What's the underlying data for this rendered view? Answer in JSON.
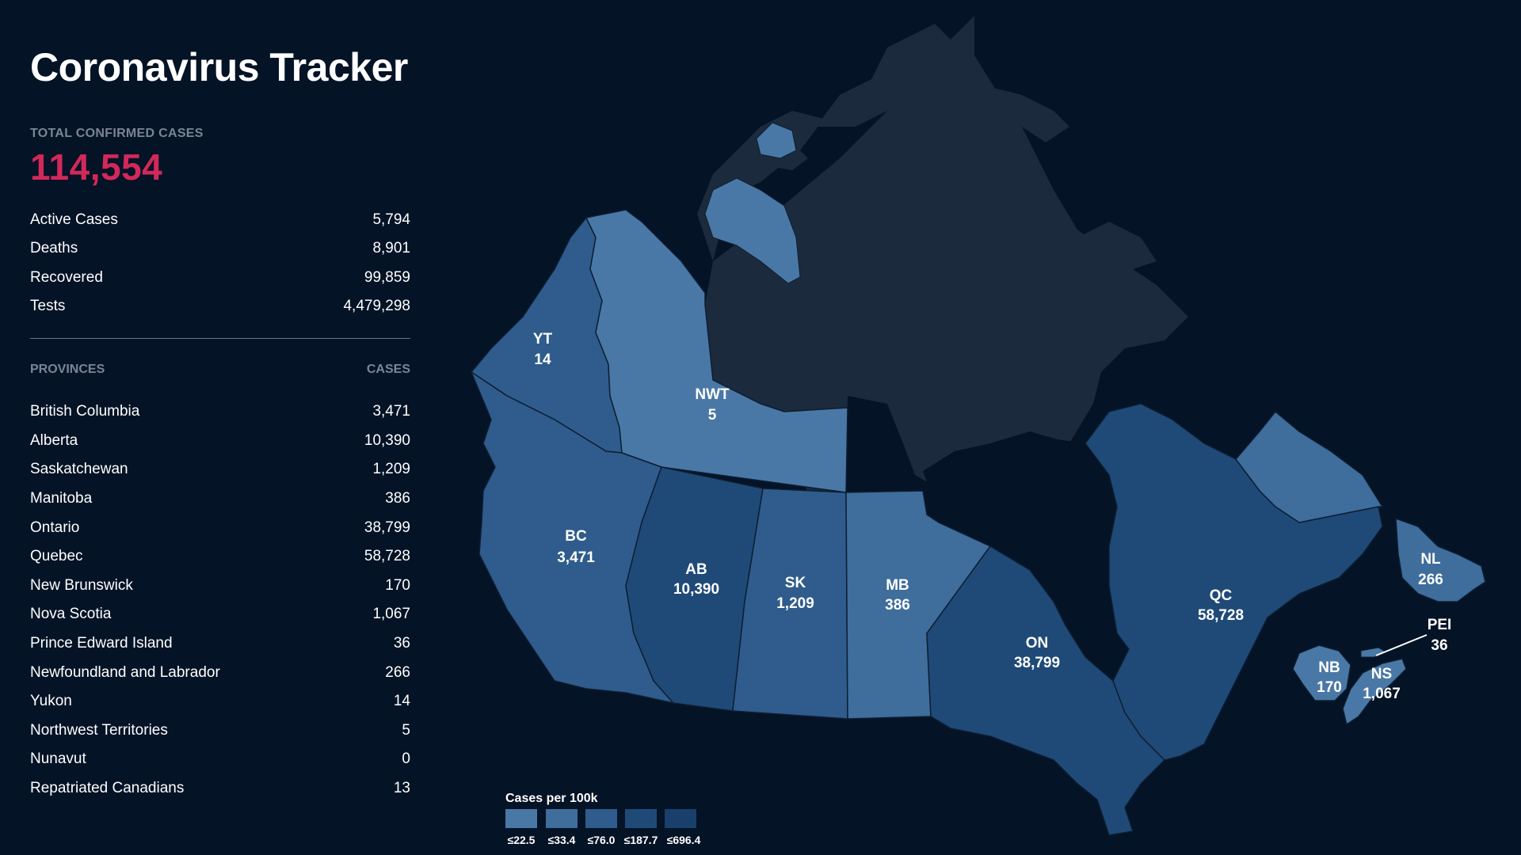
{
  "header": {
    "title": "Coronavirus Tracker"
  },
  "totals": {
    "label": "TOTAL CONFIRMED CASES",
    "value": "114,554",
    "stats": [
      {
        "label": "Active Cases",
        "value": "5,794"
      },
      {
        "label": "Deaths",
        "value": "8,901"
      },
      {
        "label": "Recovered",
        "value": "99,859"
      },
      {
        "label": "Tests",
        "value": "4,479,298"
      }
    ]
  },
  "provinces_table": {
    "col_province": "PROVINCES",
    "col_cases": "CASES",
    "rows": [
      {
        "name": "British Columbia",
        "cases": "3,471"
      },
      {
        "name": "Alberta",
        "cases": "10,390"
      },
      {
        "name": "Saskatchewan",
        "cases": "1,209"
      },
      {
        "name": "Manitoba",
        "cases": "386"
      },
      {
        "name": "Ontario",
        "cases": "38,799"
      },
      {
        "name": "Quebec",
        "cases": "58,728"
      },
      {
        "name": "New Brunswick",
        "cases": "170"
      },
      {
        "name": "Nova Scotia",
        "cases": "1,067"
      },
      {
        "name": "Prince Edward Island",
        "cases": "36"
      },
      {
        "name": "Newfoundland and Labrador",
        "cases": "266"
      },
      {
        "name": "Yukon",
        "cases": "14"
      },
      {
        "name": "Northwest Territories",
        "cases": "5"
      },
      {
        "name": "Nunavut",
        "cases": "0"
      },
      {
        "name": "Repatriated Canadians",
        "cases": "13"
      }
    ]
  },
  "map": {
    "labels": {
      "yt": {
        "abbr": "YT",
        "cases": "14"
      },
      "nwt": {
        "abbr": "NWT",
        "cases": "5"
      },
      "bc": {
        "abbr": "BC",
        "cases": "3,471"
      },
      "ab": {
        "abbr": "AB",
        "cases": "10,390"
      },
      "sk": {
        "abbr": "SK",
        "cases": "1,209"
      },
      "mb": {
        "abbr": "MB",
        "cases": "386"
      },
      "on": {
        "abbr": "ON",
        "cases": "38,799"
      },
      "qc": {
        "abbr": "QC",
        "cases": "58,728"
      },
      "nl": {
        "abbr": "NL",
        "cases": "266"
      },
      "pei": {
        "abbr": "PEI",
        "cases": "36"
      },
      "nb": {
        "abbr": "NB",
        "cases": "170"
      },
      "ns": {
        "abbr": "NS",
        "cases": "1,067"
      }
    },
    "colors": {
      "background": "#041326",
      "nunavut": "#1b2a3c",
      "border": "#0d1f33",
      "accent_total": "#d2285a"
    },
    "legend": {
      "title": "Cases per 100k",
      "bins": [
        {
          "label": "≤22.5",
          "color": "#4a78a6"
        },
        {
          "label": "≤33.4",
          "color": "#3f6d9c"
        },
        {
          "label": "≤76.0",
          "color": "#2f5c8c"
        },
        {
          "label": "≤187.7",
          "color": "#1f4a78"
        },
        {
          "label": "≤696.4",
          "color": "#193f6b"
        }
      ]
    }
  }
}
